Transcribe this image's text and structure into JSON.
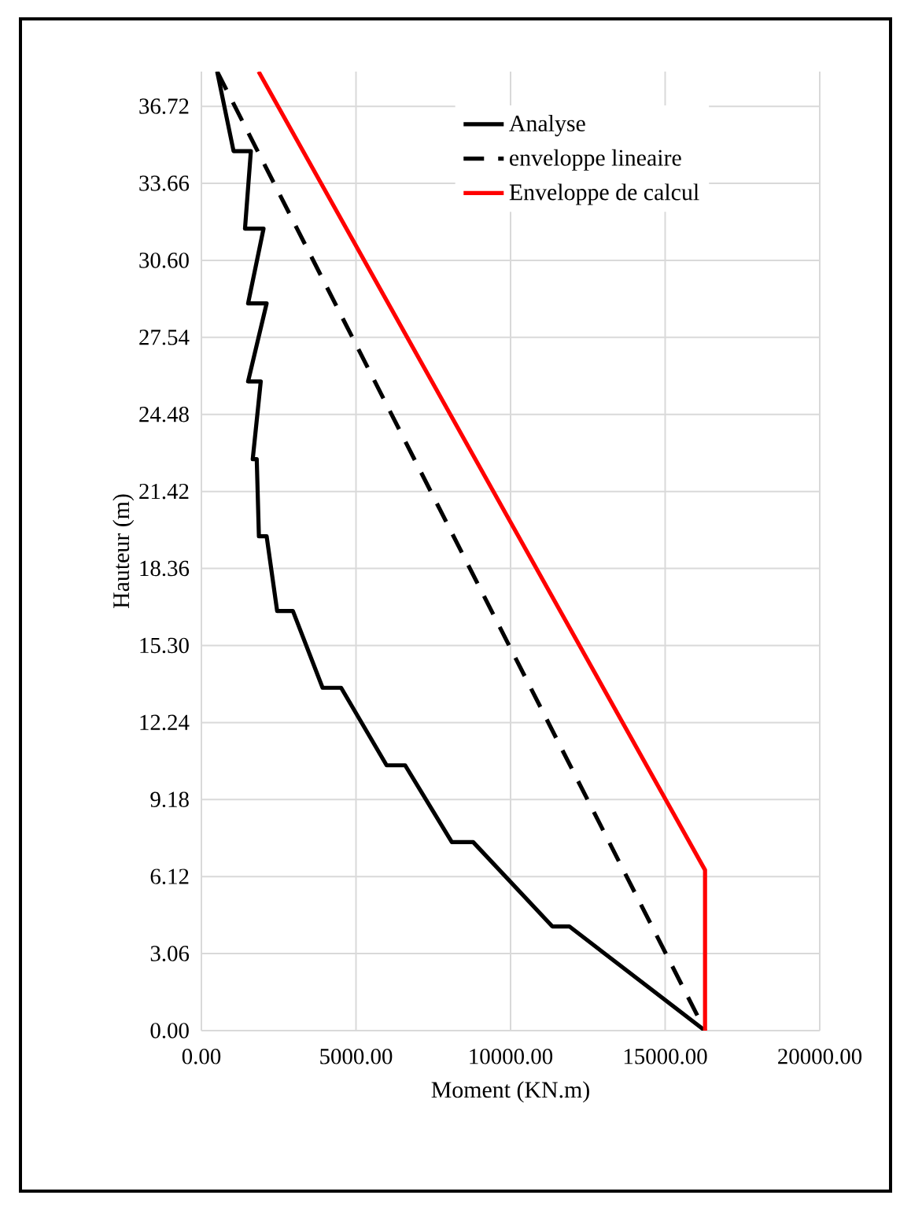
{
  "chart_data": {
    "type": "line",
    "xlabel": "Moment (KN.m)",
    "ylabel": "Hauteur (m)",
    "xlim": [
      0,
      20000
    ],
    "ylim": [
      0,
      38.1
    ],
    "xticks": [
      {
        "value": 0,
        "label": "0.00"
      },
      {
        "value": 5000,
        "label": "5000.00"
      },
      {
        "value": 10000,
        "label": "10000.00"
      },
      {
        "value": 15000,
        "label": "15000.00"
      },
      {
        "value": 20000,
        "label": "20000.00"
      }
    ],
    "yticks": [
      {
        "value": 0,
        "label": "0.00"
      },
      {
        "value": 3.06,
        "label": "3.06"
      },
      {
        "value": 6.12,
        "label": "6.12"
      },
      {
        "value": 9.18,
        "label": "9.18"
      },
      {
        "value": 12.24,
        "label": "12.24"
      },
      {
        "value": 15.3,
        "label": "15.30"
      },
      {
        "value": 18.36,
        "label": "18.36"
      },
      {
        "value": 21.42,
        "label": "21.42"
      },
      {
        "value": 24.48,
        "label": "24.48"
      },
      {
        "value": 27.54,
        "label": "27.54"
      },
      {
        "value": 30.6,
        "label": "30.60"
      },
      {
        "value": 33.66,
        "label": "33.66"
      },
      {
        "value": 36.72,
        "label": "36.72"
      }
    ],
    "grid": true,
    "legend": "top right",
    "marker": "none",
    "series": [
      {
        "name": "Analyse",
        "color": "#000000",
        "line_style": "solid",
        "x": [
          510,
          1040,
          1600,
          1410,
          2010,
          1510,
          2110,
          1510,
          1920,
          1660,
          1790,
          1860,
          2110,
          2450,
          2960,
          3920,
          4520,
          5990,
          6590,
          8100,
          8790,
          11350,
          11900,
          16290
        ],
        "values": [
          38.1,
          34.94,
          34.94,
          31.86,
          31.86,
          28.89,
          28.89,
          25.79,
          25.79,
          22.7,
          22.7,
          19.64,
          19.64,
          16.67,
          16.67,
          13.62,
          13.62,
          10.54,
          10.54,
          7.49,
          7.49,
          4.14,
          4.14,
          0
        ]
      },
      {
        "name": "enveloppe lineaire",
        "color": "#000000",
        "line_style": "dashed",
        "x": [
          510,
          16290
        ],
        "values": [
          38.1,
          0
        ]
      },
      {
        "name": "Enveloppe de calcul",
        "color": "#ff0000",
        "line_style": "solid",
        "x": [
          1850,
          16290,
          16290
        ],
        "values": [
          38.1,
          6.38,
          0
        ]
      }
    ]
  }
}
